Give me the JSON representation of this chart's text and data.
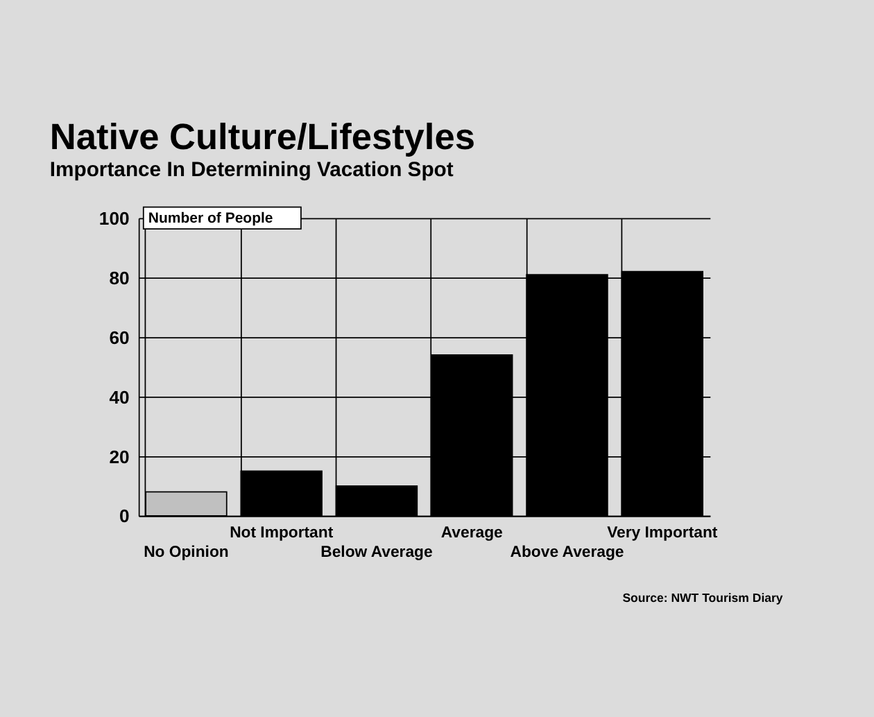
{
  "chart_data": {
    "type": "bar",
    "title": "Native Culture/Lifestyles",
    "subtitle": "Importance In Determining Vacation Spot",
    "ylabel": "Number of People",
    "categories": [
      "No Opinion",
      "Not Important",
      "Below Average",
      "Average",
      "Above Average",
      "Very Important"
    ],
    "values": [
      8,
      15,
      10,
      54,
      81,
      82
    ],
    "colors": [
      "#c0c0c0",
      "#000000",
      "#000000",
      "#000000",
      "#000000",
      "#000000"
    ],
    "ylim": [
      0,
      100
    ],
    "yticks": [
      0,
      20,
      40,
      60,
      80,
      100
    ],
    "grid": true,
    "annotations": [
      "Source: NWT Tourism Diary"
    ]
  }
}
